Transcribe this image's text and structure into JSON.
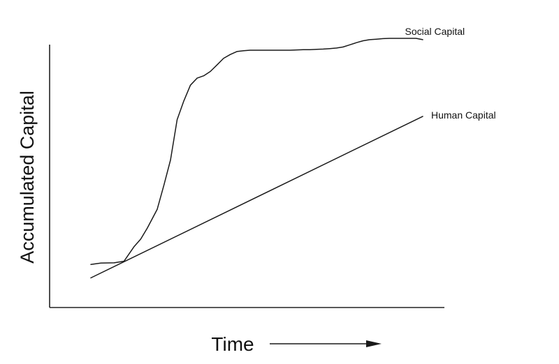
{
  "chart_data": {
    "type": "line",
    "title": "",
    "xlabel": "Time",
    "ylabel": "Accumulated Capital",
    "xlim": [
      0,
      100
    ],
    "ylim": [
      0,
      100
    ],
    "grid": false,
    "legend": "inline-right",
    "series": [
      {
        "name": "Social Capital",
        "x": [
          0,
          3,
          7,
          10,
          13,
          15,
          17,
          20,
          22,
          24,
          26,
          28,
          30,
          32,
          34,
          36,
          38,
          40,
          42,
          44,
          46,
          48,
          50,
          52,
          55,
          58,
          60,
          62,
          64,
          66,
          68,
          70,
          72,
          74,
          76,
          78,
          80,
          82,
          84,
          86,
          88,
          90,
          92,
          94,
          96,
          98,
          100
        ],
        "y": [
          16,
          16.5,
          16.6,
          17.2,
          22.6,
          25.4,
          29.5,
          36.5,
          45.4,
          54.8,
          69.8,
          76.7,
          82.6,
          85.2,
          86.1,
          87.7,
          90.1,
          92.6,
          94.0,
          95.1,
          95.4,
          95.6,
          95.6,
          95.6,
          95.6,
          95.6,
          95.6,
          95.7,
          95.8,
          95.8,
          95.9,
          96.0,
          96.2,
          96.4,
          96.8,
          97.6,
          98.4,
          99.1,
          99.5,
          99.7,
          99.9,
          100,
          100,
          100,
          100,
          100,
          99.5
        ]
      },
      {
        "name": "Human Capital",
        "x": [
          0,
          100
        ],
        "y": [
          11,
          71
        ]
      }
    ],
    "annotations": [
      {
        "text": "",
        "type": "arrow",
        "direction": "right",
        "near": "xlabel"
      }
    ]
  }
}
